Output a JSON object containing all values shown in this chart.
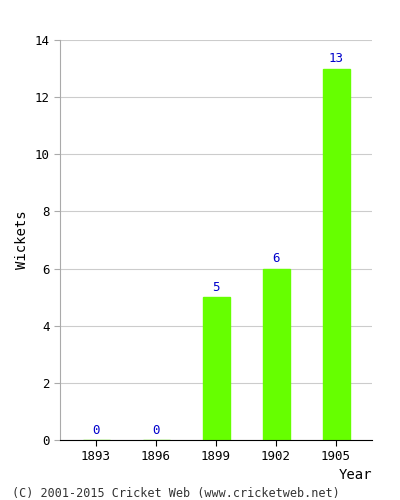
{
  "years": [
    "1893",
    "1896",
    "1899",
    "1902",
    "1905"
  ],
  "values": [
    0,
    0,
    5,
    6,
    13
  ],
  "bar_color": "#66ff00",
  "bar_edgecolor": "#66ff00",
  "label_color": "#0000cc",
  "ylabel": "Wickets",
  "xlabel": "Year",
  "ylim": [
    0,
    14
  ],
  "yticks": [
    0,
    2,
    4,
    6,
    8,
    10,
    12,
    14
  ],
  "label_fontsize": 9,
  "axis_label_fontsize": 10,
  "tick_fontsize": 9,
  "footer": "(C) 2001-2015 Cricket Web (www.cricketweb.net)",
  "footer_fontsize": 8.5,
  "background_color": "#ffffff",
  "bar_width": 0.45
}
